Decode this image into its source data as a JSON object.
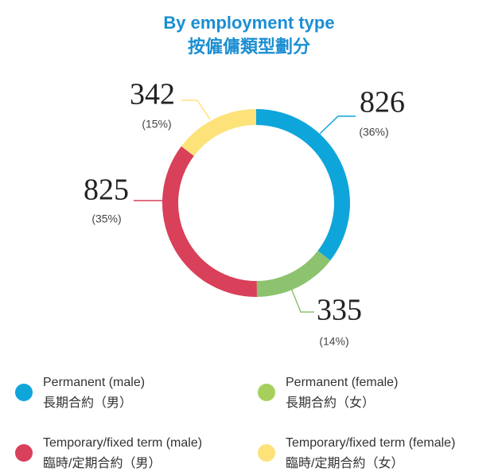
{
  "chart_data": {
    "type": "donut",
    "title": "By employment type",
    "subtitle": "按僱傭類型劃分",
    "categories": [
      "Permanent (male)",
      "Permanent (female)",
      "Temporary/fixed term (male)",
      "Temporary/fixed term (female)"
    ],
    "categories_zh": [
      "長期合約（男）",
      "長期合約（女）",
      "臨時/定期合約（男）",
      "臨時/定期合約（女）"
    ],
    "values": [
      826,
      335,
      825,
      342
    ],
    "percent_labels": [
      "(36%)",
      "(14%)",
      "(35%)",
      "(15%)"
    ],
    "colors": [
      "#0ea5db",
      "#8dc26f",
      "#d9405a",
      "#fde27a"
    ],
    "legend_colors": [
      "#0ea5db",
      "#a6d05b",
      "#d9405a",
      "#fde27a"
    ]
  }
}
